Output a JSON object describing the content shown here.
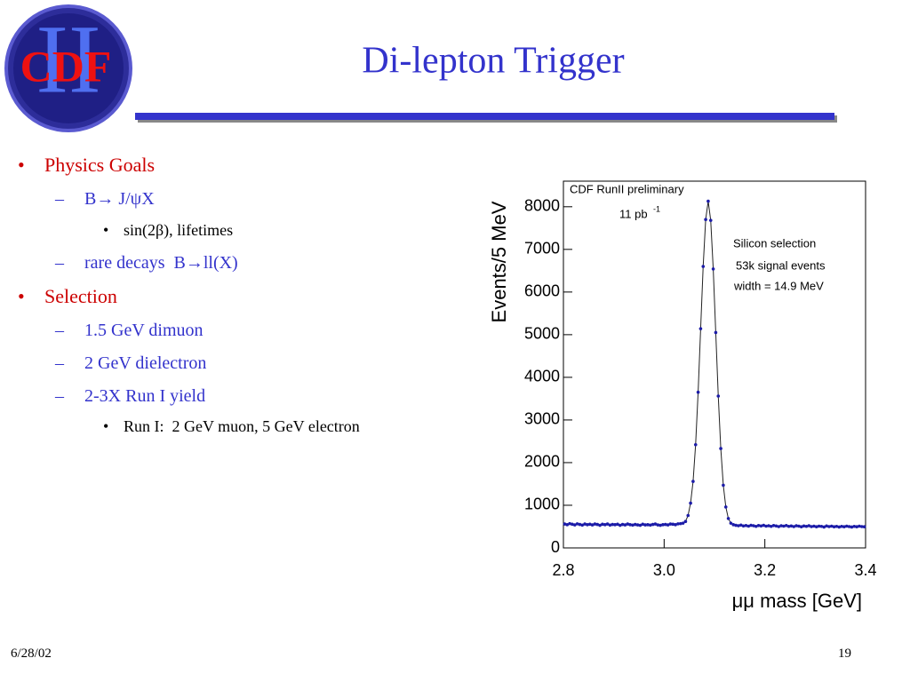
{
  "slide": {
    "logo": {
      "main": "CDF",
      "numeral": "II"
    },
    "title": "Di-lepton Trigger",
    "bullets": [
      {
        "text": "Physics Goals",
        "children": [
          {
            "text": "B→ J/ψX",
            "children": [
              {
                "text": "sin(2β), lifetimes"
              }
            ]
          },
          {
            "text": "rare decays  B→ll(X)"
          }
        ]
      },
      {
        "text": "Selection",
        "children": [
          {
            "text": "1.5 GeV dimuon"
          },
          {
            "text": "2 GeV dielectron"
          },
          {
            "text": "2-3X Run I yield",
            "children": [
              {
                "text": "Run I:  2 GeV muon, 5 GeV electron"
              }
            ]
          }
        ]
      }
    ],
    "date": "6/28/02",
    "page": "19"
  },
  "chart_data": {
    "type": "scatter",
    "x_label": "μμ mass [GeV]",
    "y_label": "Events/5 MeV",
    "annotations": {
      "experiment": "CDF RunII preliminary",
      "luminosity": "11 pb",
      "luminosity_exponent": "-1",
      "selection": "Silicon selection",
      "signal": "53k signal events",
      "width": "width  = 14.9 MeV"
    },
    "xlim": [
      2.8,
      3.4
    ],
    "ylim": [
      0,
      8600
    ],
    "xticks": [
      2.8,
      {
        "value": 3,
        "label": "3.0"
      },
      3.2,
      3.4
    ],
    "yticks": [
      0,
      1000,
      2000,
      3000,
      4000,
      5000,
      6000,
      7000,
      8000
    ],
    "x": [
      2.8025,
      2.8075,
      2.8125,
      2.8175,
      2.8225,
      2.8275,
      2.8325,
      2.8375,
      2.8425,
      2.8475,
      2.8525,
      2.8575,
      2.8625,
      2.8675,
      2.8725,
      2.8775,
      2.8825,
      2.8875,
      2.8925,
      2.8975,
      2.9025,
      2.9075,
      2.9125,
      2.9175,
      2.9225,
      2.9275,
      2.9325,
      2.9375,
      2.9425,
      2.9475,
      2.9525,
      2.9575,
      2.9625,
      2.9675,
      2.9725,
      2.9775,
      2.9825,
      2.9875,
      2.9925,
      2.9975,
      3.0025,
      3.0075,
      3.0125,
      3.0175,
      3.0225,
      3.0275,
      3.0325,
      3.0375,
      3.0425,
      3.0475,
      3.0525,
      3.0575,
      3.0625,
      3.0675,
      3.0725,
      3.0775,
      3.0825,
      3.0875,
      3.0925,
      3.0975,
      3.1025,
      3.1075,
      3.1125,
      3.1175,
      3.1225,
      3.1275,
      3.1325,
      3.1375,
      3.1425,
      3.1475,
      3.1525,
      3.1575,
      3.1625,
      3.1675,
      3.1725,
      3.1775,
      3.1825,
      3.1875,
      3.1925,
      3.1975,
      3.2025,
      3.2075,
      3.2125,
      3.2175,
      3.2225,
      3.2275,
      3.2325,
      3.2375,
      3.2425,
      3.2475,
      3.2525,
      3.2575,
      3.2625,
      3.2675,
      3.2725,
      3.2775,
      3.2825,
      3.2875,
      3.2925,
      3.2975,
      3.3025,
      3.3075,
      3.3125,
      3.3175,
      3.3225,
      3.3275,
      3.3325,
      3.3375,
      3.3425,
      3.3475,
      3.3525,
      3.3575,
      3.3625,
      3.3675,
      3.3725,
      3.3775,
      3.3825,
      3.3875,
      3.3925,
      3.3975
    ],
    "series": [
      {
        "color": "#1c1ca8",
        "values": [
          560,
          545,
          570,
          555,
          540,
          565,
          550,
          535,
          560,
          545,
          555,
          540,
          560,
          550,
          530,
          555,
          545,
          560,
          535,
          550,
          545,
          555,
          530,
          550,
          540,
          560,
          545,
          535,
          550,
          540,
          530,
          555,
          540,
          545,
          535,
          550,
          560,
          540,
          530,
          545,
          550,
          540,
          560,
          555,
          545,
          565,
          570,
          580,
          620,
          760,
          1050,
          1560,
          2420,
          3650,
          5140,
          6600,
          7700,
          8130,
          7680,
          6540,
          5050,
          3560,
          2330,
          1470,
          960,
          690,
          580,
          545,
          530,
          520,
          535,
          515,
          525,
          510,
          530,
          520,
          505,
          525,
          515,
          530,
          510,
          520,
          505,
          525,
          515,
          500,
          520,
          510,
          525,
          505,
          515,
          500,
          520,
          510,
          495,
          515,
          505,
          520,
          500,
          510,
          495,
          510,
          505,
          490,
          515,
          500,
          510,
          495,
          505,
          490,
          505,
          495,
          510,
          500,
          490,
          505,
          495,
          510,
          500,
          495
        ]
      }
    ]
  }
}
